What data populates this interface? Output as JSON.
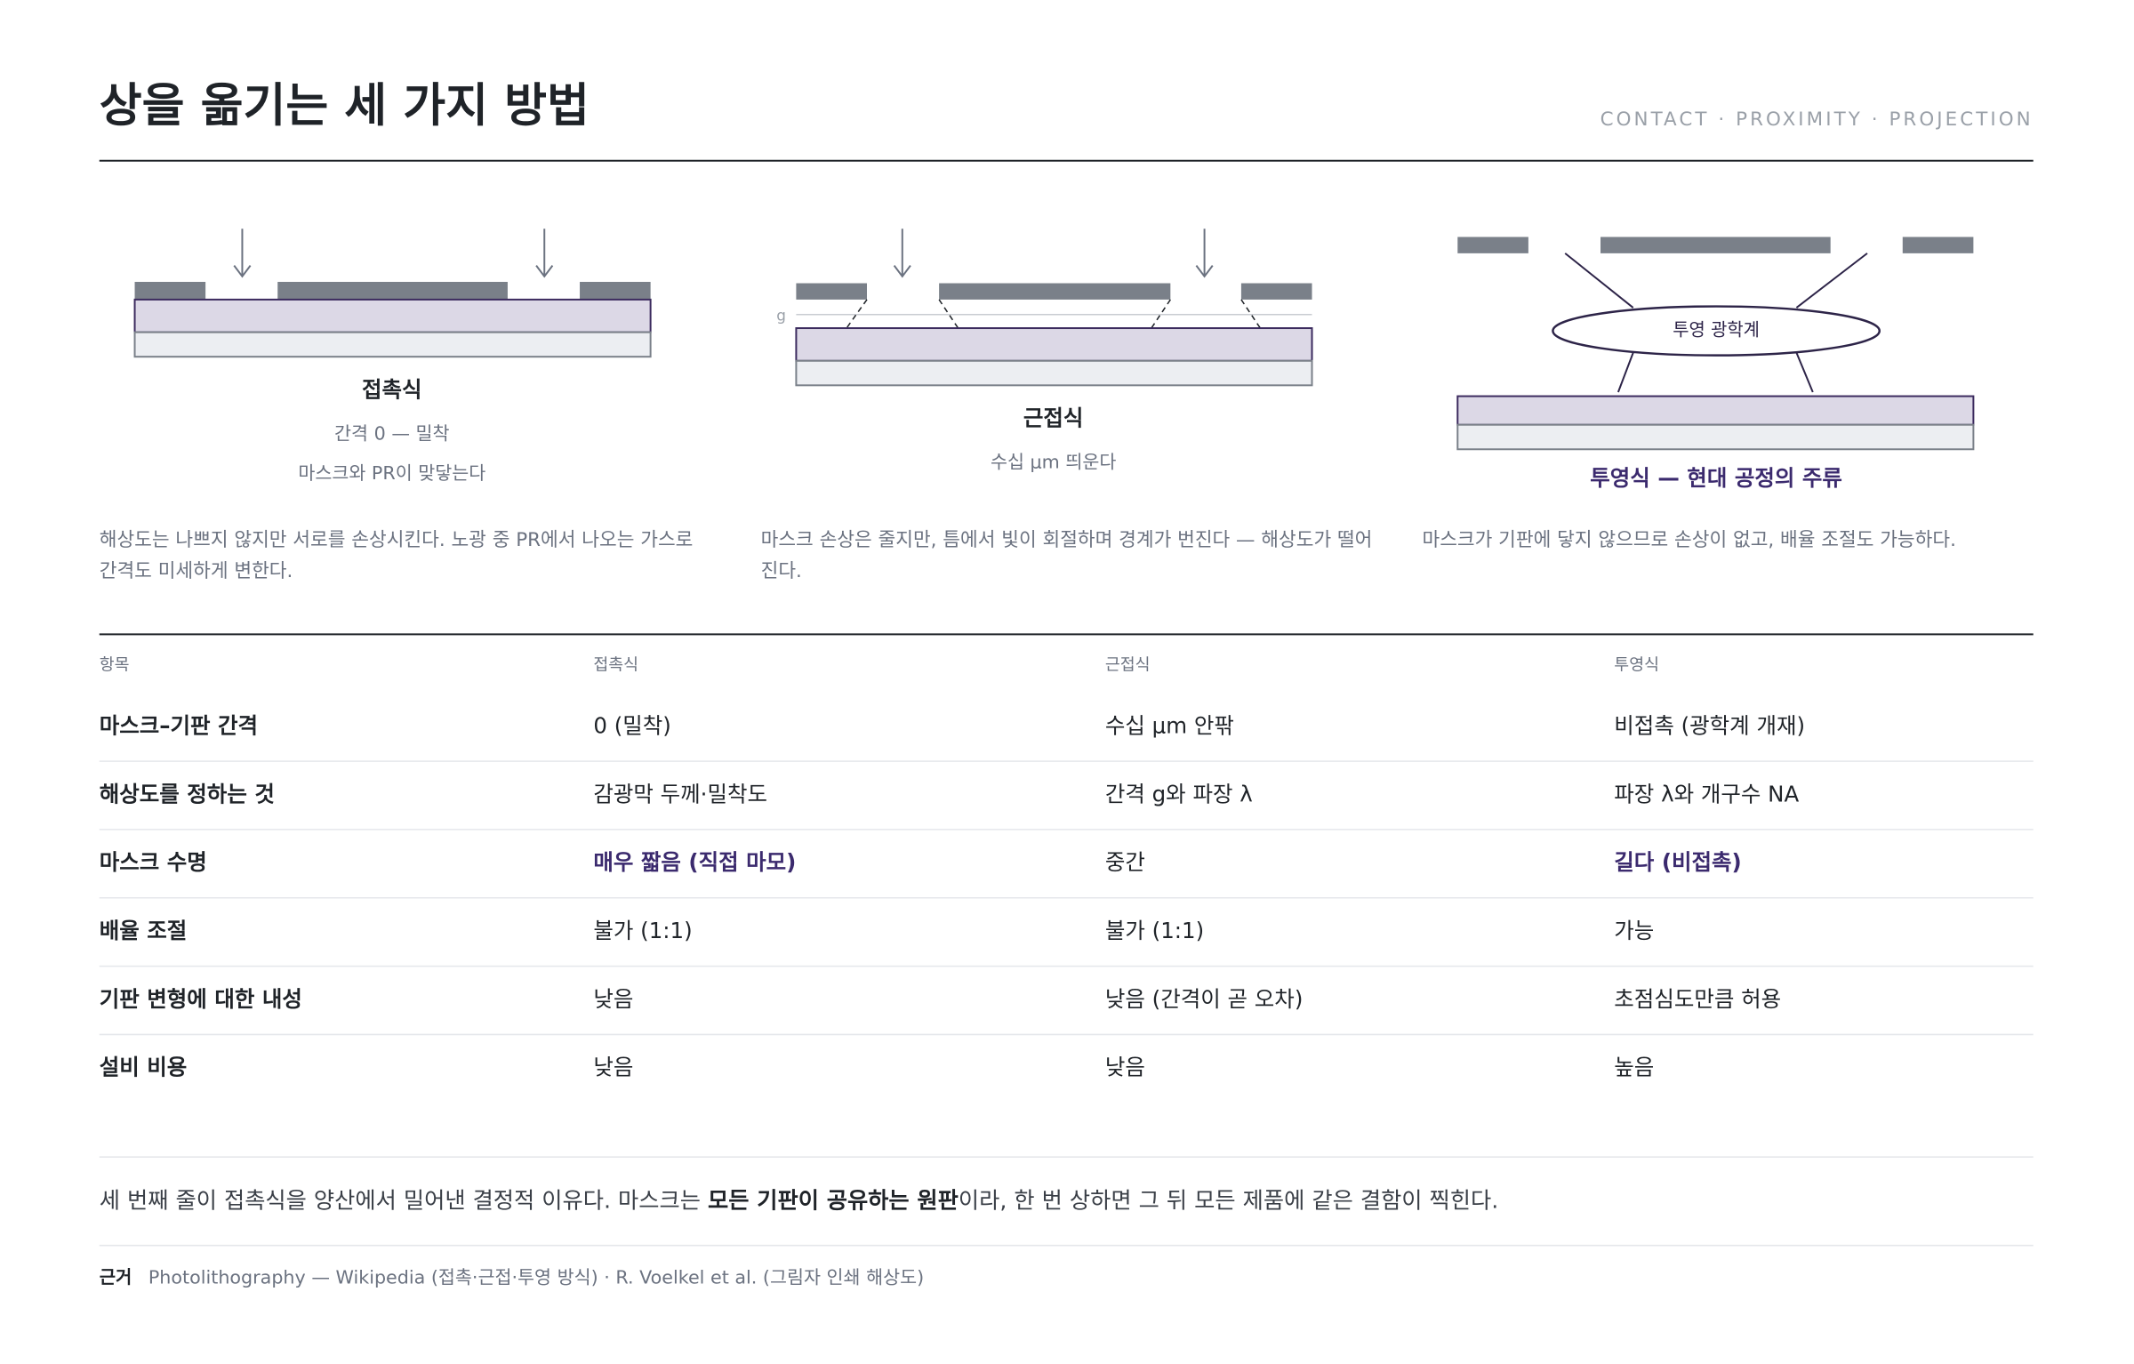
{
  "header": {
    "title": "상을 옮기는 세 가지 방법",
    "subtitle": "CONTACT · PROXIMITY · PROJECTION"
  },
  "methods": [
    {
      "name": "접촉식",
      "lines": [
        "간격 0 — 밀착",
        "마스크와 PR이 맞닿는다"
      ],
      "desc": "해상도는 나쁘지 않지만 서로를 손상시킨다. 노광 중 PR에서 나오는 가스로 간격도 미세하게 변한다."
    },
    {
      "name": "근접식",
      "lines": [
        "수십 μm 띄운다"
      ],
      "gap_label": "g",
      "desc": "마스크 손상은 줄지만, 틈에서 빛이 회절하며 경계가 번진다 — 해상도가 떨어진다."
    },
    {
      "name": "투영식 — 현대 공정의 주류",
      "lines": [],
      "optics_label": "투영 광학계",
      "desc": "마스크가 기판에 닿지 않으므로 손상이 없고, 배율 조절도 가능하다."
    }
  ],
  "table": {
    "headers": [
      "항목",
      "접촉식",
      "근접식",
      "투영식"
    ],
    "rows": [
      [
        "마스크–기판 간격",
        "0 (밀착)",
        "수십 μm 안팎",
        "비접촉 (광학계 개재)"
      ],
      [
        "해상도를 정하는 것",
        "감광막 두께·밀착도",
        "간격 g와 파장 λ",
        "파장 λ와 개구수 NA"
      ],
      [
        "마스크 수명",
        "매우 짧음 (직접 마모)",
        "중간",
        "길다 (비접촉)"
      ],
      [
        "배율 조절",
        "불가 (1:1)",
        "불가 (1:1)",
        "가능"
      ],
      [
        "기판 변형에 대한 내성",
        "낮음",
        "낮음 (간격이 곧 오차)",
        "초점심도만큼 허용"
      ],
      [
        "설비 비용",
        "낮음",
        "낮음",
        "높음"
      ]
    ]
  },
  "note": [
    "세 번째 줄이 접촉식을 양산에서 밀어낸 결정적 이유다. 마스크는 ",
    "모든 기판이 공유하는 원판",
    "이라, 한 번 상하면 그 뒤 모든 제품에 같은 결함이 찍힌다."
  ],
  "source": {
    "label": "근거",
    "text": "Photolithography — Wikipedia (접촉·근접·투영 방식) · R. Voelkel et al. (그림자 인쇄 해상도)"
  }
}
